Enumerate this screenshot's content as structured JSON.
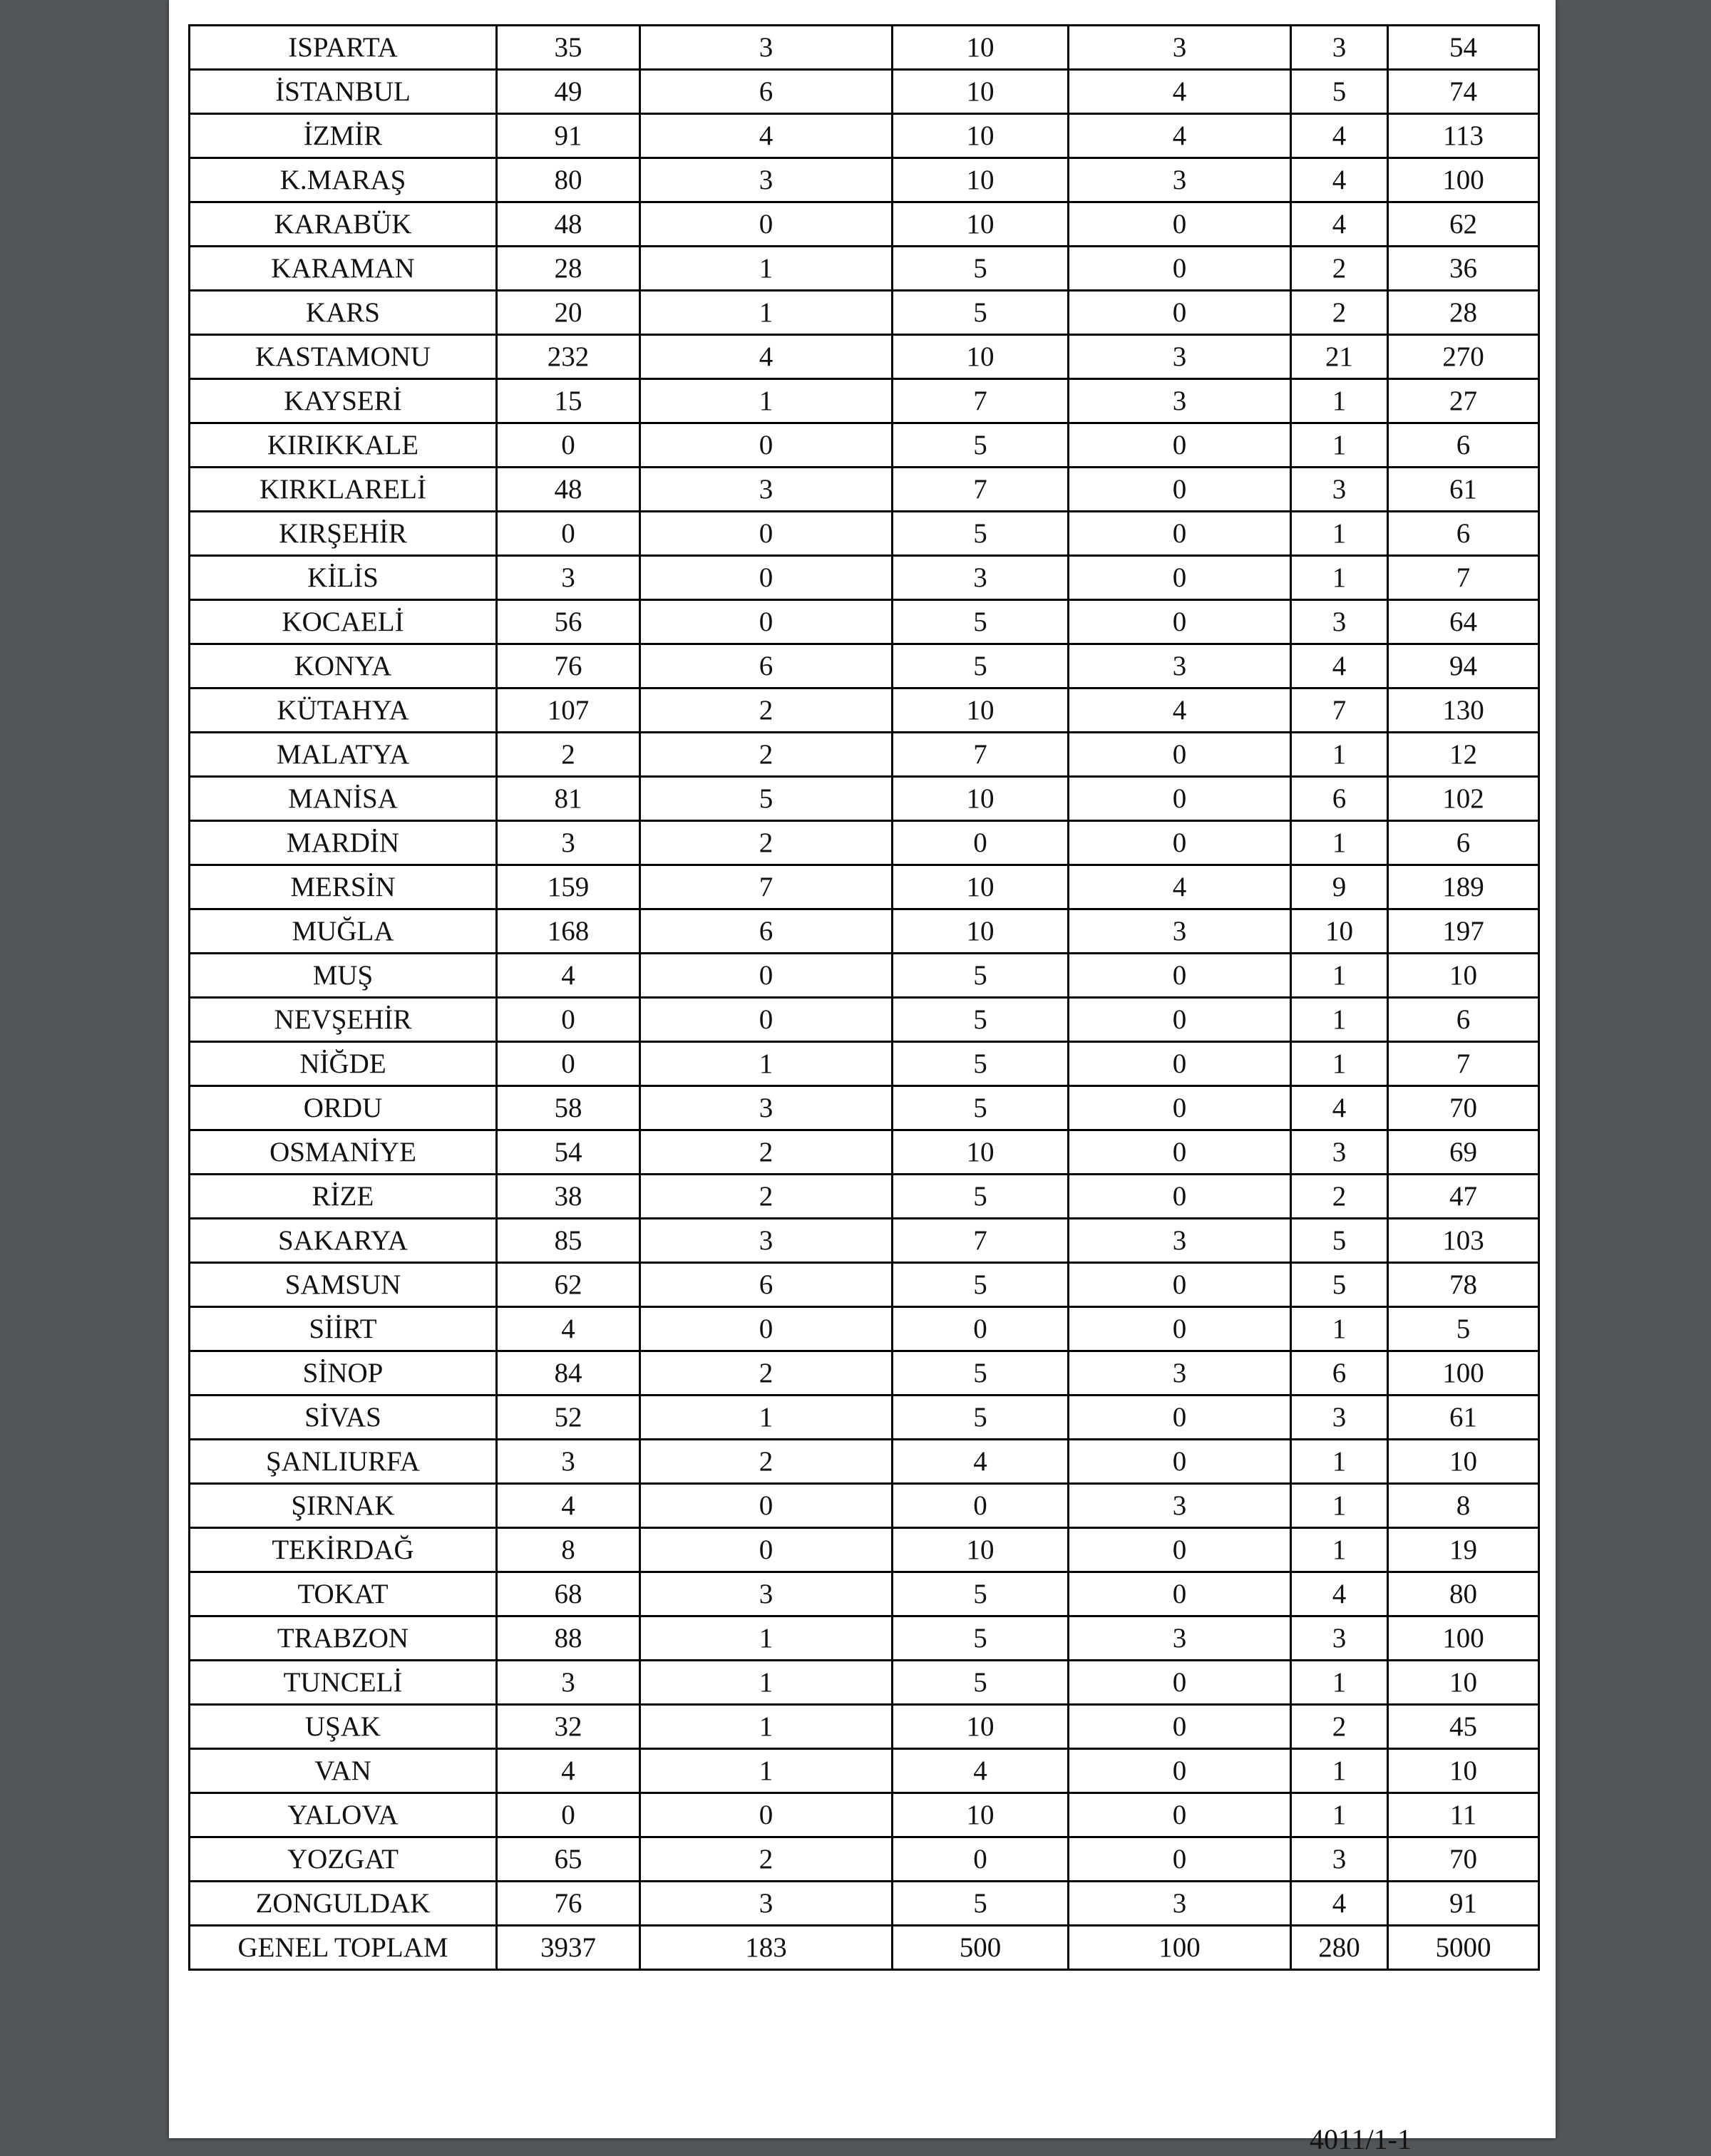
{
  "table": {
    "rows": [
      [
        "ISPARTA",
        "35",
        "3",
        "10",
        "3",
        "3",
        "54"
      ],
      [
        "İSTANBUL",
        "49",
        "6",
        "10",
        "4",
        "5",
        "74"
      ],
      [
        "İZMİR",
        "91",
        "4",
        "10",
        "4",
        "4",
        "113"
      ],
      [
        "K.MARAŞ",
        "80",
        "3",
        "10",
        "3",
        "4",
        "100"
      ],
      [
        "KARABÜK",
        "48",
        "0",
        "10",
        "0",
        "4",
        "62"
      ],
      [
        "KARAMAN",
        "28",
        "1",
        "5",
        "0",
        "2",
        "36"
      ],
      [
        "KARS",
        "20",
        "1",
        "5",
        "0",
        "2",
        "28"
      ],
      [
        "KASTAMONU",
        "232",
        "4",
        "10",
        "3",
        "21",
        "270"
      ],
      [
        "KAYSERİ",
        "15",
        "1",
        "7",
        "3",
        "1",
        "27"
      ],
      [
        "KIRIKKALE",
        "0",
        "0",
        "5",
        "0",
        "1",
        "6"
      ],
      [
        "KIRKLARELİ",
        "48",
        "3",
        "7",
        "0",
        "3",
        "61"
      ],
      [
        "KIRŞEHİR",
        "0",
        "0",
        "5",
        "0",
        "1",
        "6"
      ],
      [
        "KİLİS",
        "3",
        "0",
        "3",
        "0",
        "1",
        "7"
      ],
      [
        "KOCAELİ",
        "56",
        "0",
        "5",
        "0",
        "3",
        "64"
      ],
      [
        "KONYA",
        "76",
        "6",
        "5",
        "3",
        "4",
        "94"
      ],
      [
        "KÜTAHYA",
        "107",
        "2",
        "10",
        "4",
        "7",
        "130"
      ],
      [
        "MALATYA",
        "2",
        "2",
        "7",
        "0",
        "1",
        "12"
      ],
      [
        "MANİSA",
        "81",
        "5",
        "10",
        "0",
        "6",
        "102"
      ],
      [
        "MARDİN",
        "3",
        "2",
        "0",
        "0",
        "1",
        "6"
      ],
      [
        "MERSİN",
        "159",
        "7",
        "10",
        "4",
        "9",
        "189"
      ],
      [
        "MUĞLA",
        "168",
        "6",
        "10",
        "3",
        "10",
        "197"
      ],
      [
        "MUŞ",
        "4",
        "0",
        "5",
        "0",
        "1",
        "10"
      ],
      [
        "NEVŞEHİR",
        "0",
        "0",
        "5",
        "0",
        "1",
        "6"
      ],
      [
        "NİĞDE",
        "0",
        "1",
        "5",
        "0",
        "1",
        "7"
      ],
      [
        "ORDU",
        "58",
        "3",
        "5",
        "0",
        "4",
        "70"
      ],
      [
        "OSMANİYE",
        "54",
        "2",
        "10",
        "0",
        "3",
        "69"
      ],
      [
        "RİZE",
        "38",
        "2",
        "5",
        "0",
        "2",
        "47"
      ],
      [
        "SAKARYA",
        "85",
        "3",
        "7",
        "3",
        "5",
        "103"
      ],
      [
        "SAMSUN",
        "62",
        "6",
        "5",
        "0",
        "5",
        "78"
      ],
      [
        "SİİRT",
        "4",
        "0",
        "0",
        "0",
        "1",
        "5"
      ],
      [
        "SİNOP",
        "84",
        "2",
        "5",
        "3",
        "6",
        "100"
      ],
      [
        "SİVAS",
        "52",
        "1",
        "5",
        "0",
        "3",
        "61"
      ],
      [
        "ŞANLIURFA",
        "3",
        "2",
        "4",
        "0",
        "1",
        "10"
      ],
      [
        "ŞIRNAK",
        "4",
        "0",
        "0",
        "3",
        "1",
        "8"
      ],
      [
        "TEKİRDAĞ",
        "8",
        "0",
        "10",
        "0",
        "1",
        "19"
      ],
      [
        "TOKAT",
        "68",
        "3",
        "5",
        "0",
        "4",
        "80"
      ],
      [
        "TRABZON",
        "88",
        "1",
        "5",
        "3",
        "3",
        "100"
      ],
      [
        "TUNCELİ",
        "3",
        "1",
        "5",
        "0",
        "1",
        "10"
      ],
      [
        "UŞAK",
        "32",
        "1",
        "10",
        "0",
        "2",
        "45"
      ],
      [
        "VAN",
        "4",
        "1",
        "4",
        "0",
        "1",
        "10"
      ],
      [
        "YALOVA",
        "0",
        "0",
        "10",
        "0",
        "1",
        "11"
      ],
      [
        "YOZGAT",
        "65",
        "2",
        "0",
        "0",
        "3",
        "70"
      ],
      [
        "ZONGULDAK",
        "76",
        "3",
        "5",
        "3",
        "4",
        "91"
      ],
      [
        "GENEL TOPLAM",
        "3937",
        "183",
        "500",
        "100",
        "280",
        "5000"
      ]
    ]
  },
  "footer": {
    "text": "4011/1-1"
  }
}
